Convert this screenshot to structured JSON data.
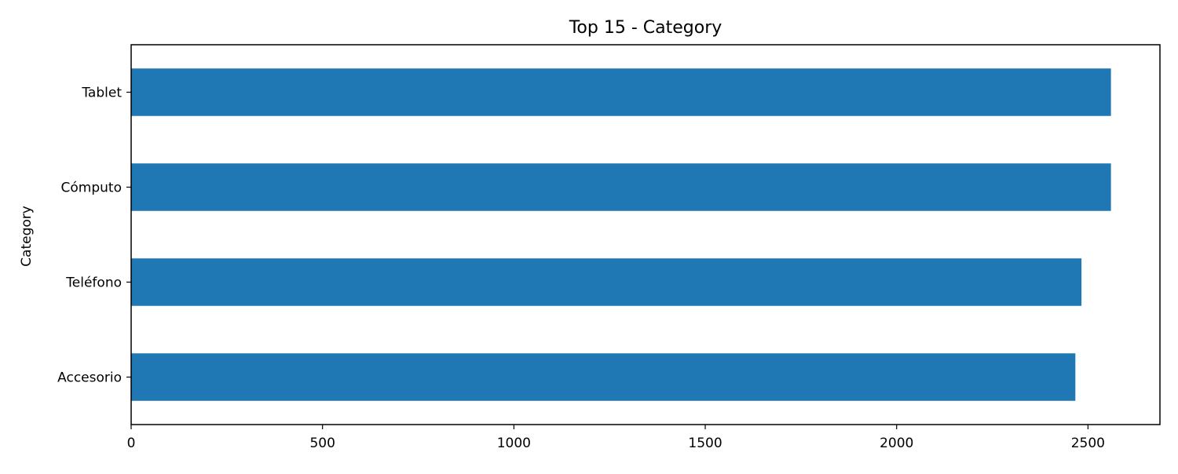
{
  "chart_data": {
    "type": "bar",
    "orientation": "horizontal",
    "title": "Top 15 - Category",
    "xlabel": "",
    "ylabel": "Category",
    "categories": [
      "Tablet",
      "Cómputo",
      "Teléfono",
      "Accesorio"
    ],
    "values": [
      2560,
      2560,
      2483,
      2467
    ],
    "xlim": [
      0,
      2688
    ],
    "xticks": [
      0,
      500,
      1000,
      1500,
      2000,
      2500
    ],
    "grid": false,
    "legend": "none",
    "bar_color": "#1f77b4"
  }
}
